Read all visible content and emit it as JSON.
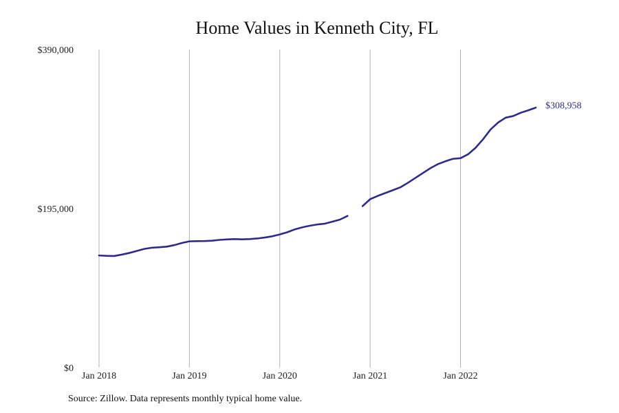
{
  "chart_data": {
    "type": "line",
    "title": "Home Values in Kenneth City, FL",
    "xlabel": "",
    "ylabel": "",
    "y_ticks": [
      {
        "value": 0,
        "label": "$0"
      },
      {
        "value": 195000,
        "label": "$195,000"
      },
      {
        "value": 390000,
        "label": "$390,000"
      }
    ],
    "x_ticks": [
      {
        "value": "2018-01",
        "label": "Jan 2018"
      },
      {
        "value": "2019-01",
        "label": "Jan 2019"
      },
      {
        "value": "2020-01",
        "label": "Jan 2020"
      },
      {
        "value": "2021-01",
        "label": "Jan 2021"
      },
      {
        "value": "2022-01",
        "label": "Jan 2022"
      }
    ],
    "ylim": [
      0,
      390000
    ],
    "xlim": [
      "2018-01",
      "2022-10"
    ],
    "grid": "vertical",
    "line_color": "#2e2a8a",
    "end_label": "$308,958",
    "segments": [
      {
        "points": [
          [
            "2018-01",
            137500
          ],
          [
            "2018-02",
            137000
          ],
          [
            "2018-03",
            136800
          ],
          [
            "2018-04",
            138500
          ],
          [
            "2018-05",
            140500
          ],
          [
            "2018-06",
            143000
          ],
          [
            "2018-07",
            145500
          ],
          [
            "2018-08",
            147000
          ],
          [
            "2018-09",
            147600
          ],
          [
            "2018-10",
            148300
          ],
          [
            "2018-11",
            150200
          ],
          [
            "2018-12",
            152800
          ],
          [
            "2019-01",
            154800
          ],
          [
            "2019-02",
            155100
          ],
          [
            "2019-03",
            155200
          ],
          [
            "2019-04",
            155600
          ],
          [
            "2019-05",
            156600
          ],
          [
            "2019-06",
            157200
          ],
          [
            "2019-07",
            157600
          ],
          [
            "2019-08",
            157300
          ],
          [
            "2019-09",
            157600
          ],
          [
            "2019-10",
            158300
          ],
          [
            "2019-11",
            159500
          ],
          [
            "2019-12",
            161000
          ],
          [
            "2020-01",
            163200
          ],
          [
            "2020-02",
            166000
          ],
          [
            "2020-03",
            169500
          ],
          [
            "2020-04",
            172000
          ],
          [
            "2020-05",
            174000
          ],
          [
            "2020-06",
            175500
          ],
          [
            "2020-07",
            176500
          ],
          [
            "2020-08",
            179000
          ],
          [
            "2020-09",
            181500
          ],
          [
            "2020-10",
            186000
          ]
        ]
      },
      {
        "points": [
          [
            "2020-12",
            198000
          ],
          [
            "2021-01",
            206500
          ],
          [
            "2021-02",
            210500
          ],
          [
            "2021-03",
            214000
          ],
          [
            "2021-04",
            217500
          ],
          [
            "2021-05",
            221000
          ],
          [
            "2021-06",
            226500
          ],
          [
            "2021-07",
            232500
          ],
          [
            "2021-08",
            238500
          ],
          [
            "2021-09",
            244500
          ],
          [
            "2021-10",
            249500
          ],
          [
            "2021-11",
            253000
          ],
          [
            "2021-12",
            256000
          ],
          [
            "2022-01",
            256800
          ],
          [
            "2022-02",
            261500
          ],
          [
            "2022-03",
            269500
          ],
          [
            "2022-04",
            280000
          ],
          [
            "2022-05",
            292000
          ],
          [
            "2022-06",
            300500
          ],
          [
            "2022-07",
            306500
          ],
          [
            "2022-08",
            308500
          ],
          [
            "2022-09",
            312500
          ],
          [
            "2022-10",
            315500
          ],
          [
            "2022-11",
            318800
          ]
        ]
      }
    ]
  },
  "footer": {
    "source": "Source: Zillow. Data represents monthly typical home value."
  }
}
